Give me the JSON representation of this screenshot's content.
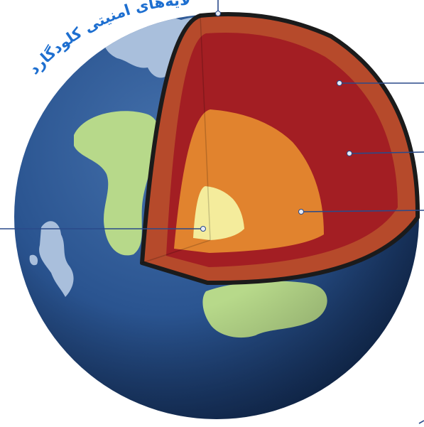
{
  "watermark": {
    "text": "لایه‌های امنیتی کلودگارد",
    "color": "#1e6fd0"
  },
  "diagram": {
    "subject": "earth-cross-section",
    "layers": [
      "crust",
      "mantle",
      "outer-core",
      "inner-core"
    ],
    "colors": {
      "ocean_dark": "#14305e",
      "ocean_mid": "#2a5490",
      "ocean_light": "#4470ab",
      "land_green": "#b7d98a",
      "land_ice": "#a9bfdc",
      "crust": "#b64a2b",
      "mantle": "#a31e23",
      "outer_core": "#e1832e",
      "inner_core": "#f4ec9c",
      "outline": "#1b1b1b",
      "pointer_line": "#2a4a8a",
      "pointer_dot": "#e8ecf5"
    }
  }
}
